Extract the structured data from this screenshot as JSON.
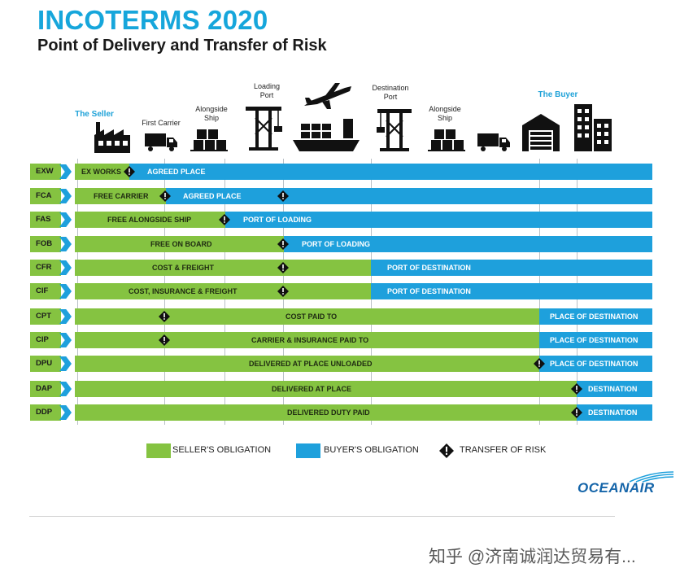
{
  "title": "INCOTERMS 2020",
  "subtitle": "Point of Delivery and Transfer of Risk",
  "header": {
    "seller": "The Seller",
    "first_carrier": "First Carrier",
    "alongside_ship_1": "Alongside\nShip",
    "loading_port": "Loading\nPort",
    "destination_port": "Destination\nPort",
    "alongside_ship_2": "Alongside\nShip",
    "buyer": "The Buyer"
  },
  "terms": [
    {
      "code": "EXW",
      "seller_label": "EX WORKS",
      "buyer_label": "AGREED PLACE",
      "risk_points": 1
    },
    {
      "code": "FCA",
      "seller_label": "FREE CARRIER",
      "buyer_label": "AGREED PLACE",
      "risk_points": 2
    },
    {
      "code": "FAS",
      "seller_label": "FREE ALONGSIDE SHIP",
      "buyer_label": "PORT OF LOADING",
      "risk_points": 1
    },
    {
      "code": "FOB",
      "seller_label": "FREE  ON BOARD",
      "buyer_label": "PORT OF LOADING",
      "risk_points": 1
    },
    {
      "code": "CFR",
      "seller_label": "COST & FREIGHT",
      "buyer_label": "PORT OF DESTINATION",
      "risk_points": 1
    },
    {
      "code": "CIF",
      "seller_label": "COST, INSURANCE & FREIGHT",
      "buyer_label": "PORT OF DESTINATION",
      "risk_points": 1
    },
    {
      "code": "CPT",
      "seller_label": "COST PAID TO",
      "buyer_label": "PLACE OF DESTINATION",
      "risk_points": 1
    },
    {
      "code": "CIP",
      "seller_label": "CARRIER & INSURANCE PAID TO",
      "buyer_label": "PLACE OF DESTINATION",
      "risk_points": 1
    },
    {
      "code": "DPU",
      "seller_label": "DELIVERED AT PLACE UNLOADED",
      "buyer_label": "PLACE OF DESTINATION",
      "risk_points": 1
    },
    {
      "code": "DAP",
      "seller_label": "DELIVERED AT PLACE",
      "buyer_label": "DESTINATION",
      "risk_points": 1
    },
    {
      "code": "DDP",
      "seller_label": "DELIVERED DUTY PAID",
      "buyer_label": "DESTINATION",
      "risk_points": 1
    }
  ],
  "legend": {
    "seller": "SELLER'S OBLIGATION",
    "buyer": "BUYER'S OBLIGATION",
    "risk": "TRANSFER OF RISK"
  },
  "colors": {
    "seller": "#85c341",
    "buyer": "#1ea0dc",
    "title": "#16a6db"
  },
  "logo": "OCEANAIR",
  "watermark": "知乎 @济南诚润达贸易有..."
}
